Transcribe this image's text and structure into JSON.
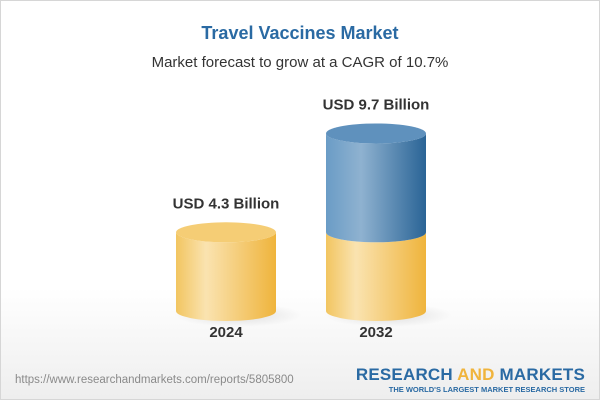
{
  "header": {
    "title": "Travel Vaccines Market",
    "subtitle": "Market forecast to grow at a CAGR of 10.7%"
  },
  "chart_data": {
    "type": "bar",
    "style": "3d-cylinder",
    "categories": [
      "2024",
      "2032"
    ],
    "values": [
      4.3,
      9.7
    ],
    "data_labels": [
      "USD 4.3 Billion",
      "USD 9.7 Billion"
    ],
    "unit": "USD Billion",
    "title": "Travel Vaccines Market",
    "subtitle": "Market forecast to grow at a CAGR of 10.7%",
    "colors": {
      "base": "#f2c35a",
      "growth": "#3f7bb0"
    },
    "grid": false
  },
  "footer": {
    "url": "https://www.researchandmarkets.com/reports/5805800",
    "logo_part1": "RESEARCH ",
    "logo_part2": "AND",
    "logo_part3": " MARKETS",
    "tagline": "THE WORLD'S LARGEST MARKET RESEARCH STORE"
  }
}
